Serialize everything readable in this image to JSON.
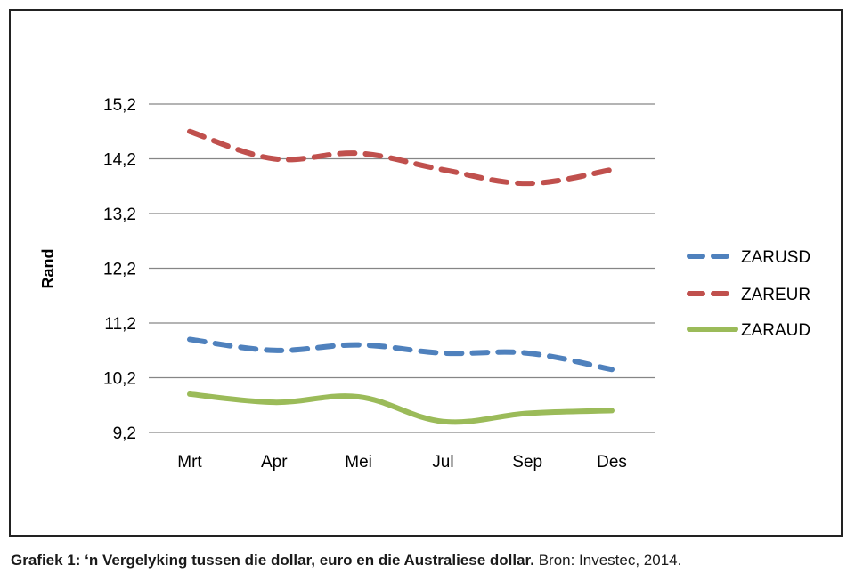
{
  "chart_data": {
    "type": "line",
    "title": "",
    "xlabel": "",
    "ylabel": "Rand",
    "categories": [
      "Mrt",
      "Apr",
      "Mei",
      "Jul",
      "Sep",
      "Des"
    ],
    "ylim": [
      9.2,
      15.2
    ],
    "yticks": [
      "15,2",
      "14,2",
      "13,2",
      "12,2",
      "11,2",
      "10,2",
      "9,2"
    ],
    "ytick_values": [
      15.2,
      14.2,
      13.2,
      12.2,
      11.2,
      10.2,
      9.2
    ],
    "grid": true,
    "legend_position": "right",
    "series": [
      {
        "name": "ZARUSD",
        "values": [
          10.9,
          10.7,
          10.8,
          10.65,
          10.65,
          10.35
        ],
        "color": "#4f81bd",
        "style": "dashed"
      },
      {
        "name": "ZAREUR",
        "values": [
          14.7,
          14.2,
          14.3,
          14.0,
          13.75,
          14.0
        ],
        "color": "#c0504d",
        "style": "dashed"
      },
      {
        "name": "ZARAUD",
        "values": [
          9.9,
          9.75,
          9.85,
          9.4,
          9.55,
          9.6
        ],
        "color": "#9bbb59",
        "style": "solid"
      }
    ]
  },
  "caption": {
    "bold": "Grafiek 1: ‘n Vergelyking tussen die dollar, euro en die Australiese dollar.",
    "normal": " Bron: Investec, 2014."
  }
}
